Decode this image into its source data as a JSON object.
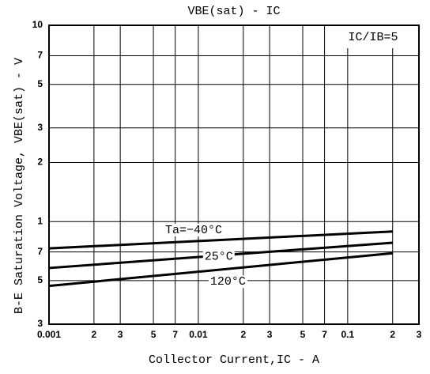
{
  "chart_data": {
    "type": "line",
    "title": "VBE(sat) - IC",
    "x_label": "Collector Current,IC - A",
    "y_label": "B-E Saturation Voltage, VBE(sat) - V",
    "annotation": "IC/IB=5",
    "log_x": true,
    "log_y": true,
    "grid": true,
    "xlim": [
      0.001,
      0.3
    ],
    "ylim": [
      0.3,
      10
    ],
    "xticks": [
      0.001,
      {
        "value": 0.002,
        "label": "2"
      },
      {
        "value": 0.003,
        "label": "3"
      },
      {
        "value": 0.005,
        "label": "5"
      },
      {
        "value": 0.007,
        "label": "7"
      },
      0.01,
      {
        "value": 0.02,
        "label": "2"
      },
      {
        "value": 0.03,
        "label": "3"
      },
      {
        "value": 0.05,
        "label": "5"
      },
      {
        "value": 0.07,
        "label": "7"
      },
      0.1,
      {
        "value": 0.2,
        "label": "2"
      },
      {
        "value": 0.3,
        "label": "3"
      }
    ],
    "yticks": [
      {
        "value": 0.3,
        "label": "3"
      },
      {
        "value": 0.5,
        "label": "5"
      },
      {
        "value": 0.7,
        "label": "7"
      },
      1,
      2,
      3,
      5,
      7,
      10
    ],
    "x": [
      0.001,
      0.2
    ],
    "series": [
      {
        "name": "Ta=−40°C",
        "color": "#000000",
        "values": [
          0.73,
          0.89
        ]
      },
      {
        "name": "25°C",
        "color": "#000000",
        "values": [
          0.58,
          0.78
        ]
      },
      {
        "name": "120°C",
        "color": "#000000",
        "values": [
          0.47,
          0.69
        ]
      }
    ]
  }
}
